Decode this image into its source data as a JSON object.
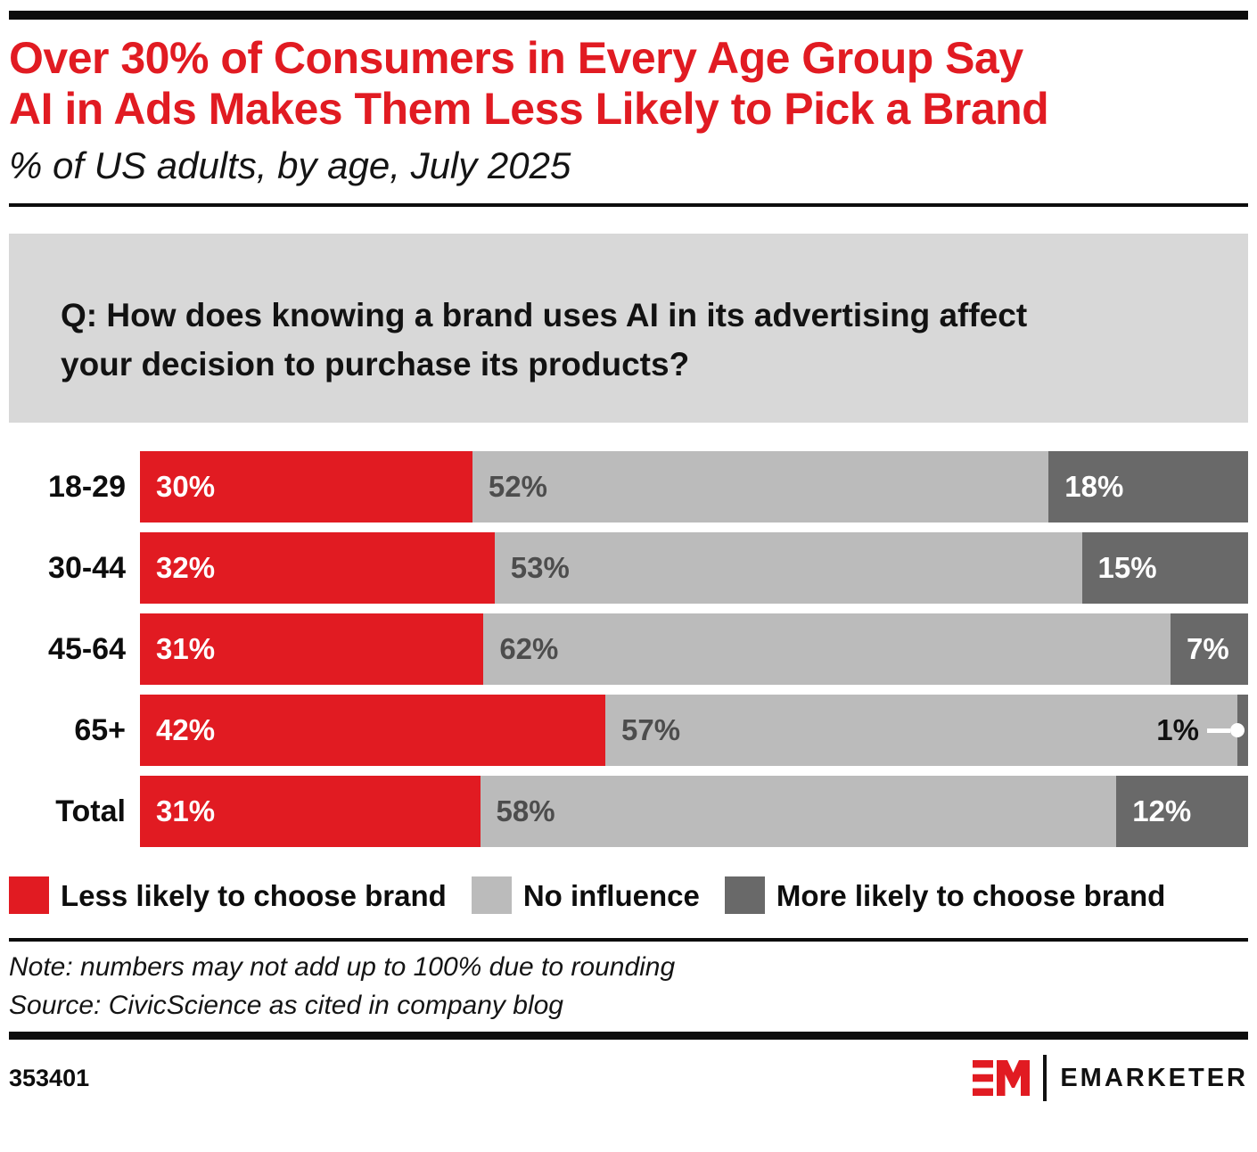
{
  "header": {
    "title_line1": "Over 30% of Consumers in Every Age Group Say",
    "title_line2": "AI in Ads Makes Them Less Likely to Pick a Brand",
    "subtitle": "% of US adults, by age, July 2025"
  },
  "question": {
    "line1": "Q: How does knowing a brand uses AI in its advertising affect",
    "line2": "your decision to purchase its products?"
  },
  "chart_data": {
    "type": "bar",
    "orientation": "horizontal",
    "stacked": true,
    "title": "Over 30% of Consumers in Every Age Group Say AI in Ads Makes Them Less Likely to Pick a Brand",
    "subtitle": "% of US adults, by age, July 2025",
    "question": "Q: How does knowing a brand uses AI in its advertising affect your decision to purchase its products?",
    "categories": [
      "18-29",
      "30-44",
      "45-64",
      "65+",
      "Total"
    ],
    "series": [
      {
        "name": "Less likely to choose brand",
        "color": "#e11b22",
        "values": [
          30,
          32,
          31,
          42,
          31
        ]
      },
      {
        "name": "No influence",
        "color": "#bbbbbb",
        "values": [
          52,
          53,
          62,
          57,
          58
        ]
      },
      {
        "name": "More likely to choose brand",
        "color": "#696969",
        "values": [
          18,
          15,
          7,
          1,
          12
        ]
      }
    ],
    "value_suffix": "%",
    "xlim": [
      0,
      100
    ],
    "legend_position": "bottom",
    "grid": false,
    "callout": {
      "category": "65+",
      "series": "More likely to choose brand",
      "value": 1
    }
  },
  "colors": {
    "accent_red": "#e11b22",
    "light_gray": "#bbbbbb",
    "dark_gray": "#696969",
    "question_box_bg": "#d8d8d8",
    "black": "#0d0d0d"
  },
  "footnote": {
    "note": "Note: numbers may not add up to 100% due to rounding",
    "source": "Source: CivicScience as cited in company blog"
  },
  "footer": {
    "chart_id": "353401",
    "brand_wordmark": "EMARKETER"
  }
}
